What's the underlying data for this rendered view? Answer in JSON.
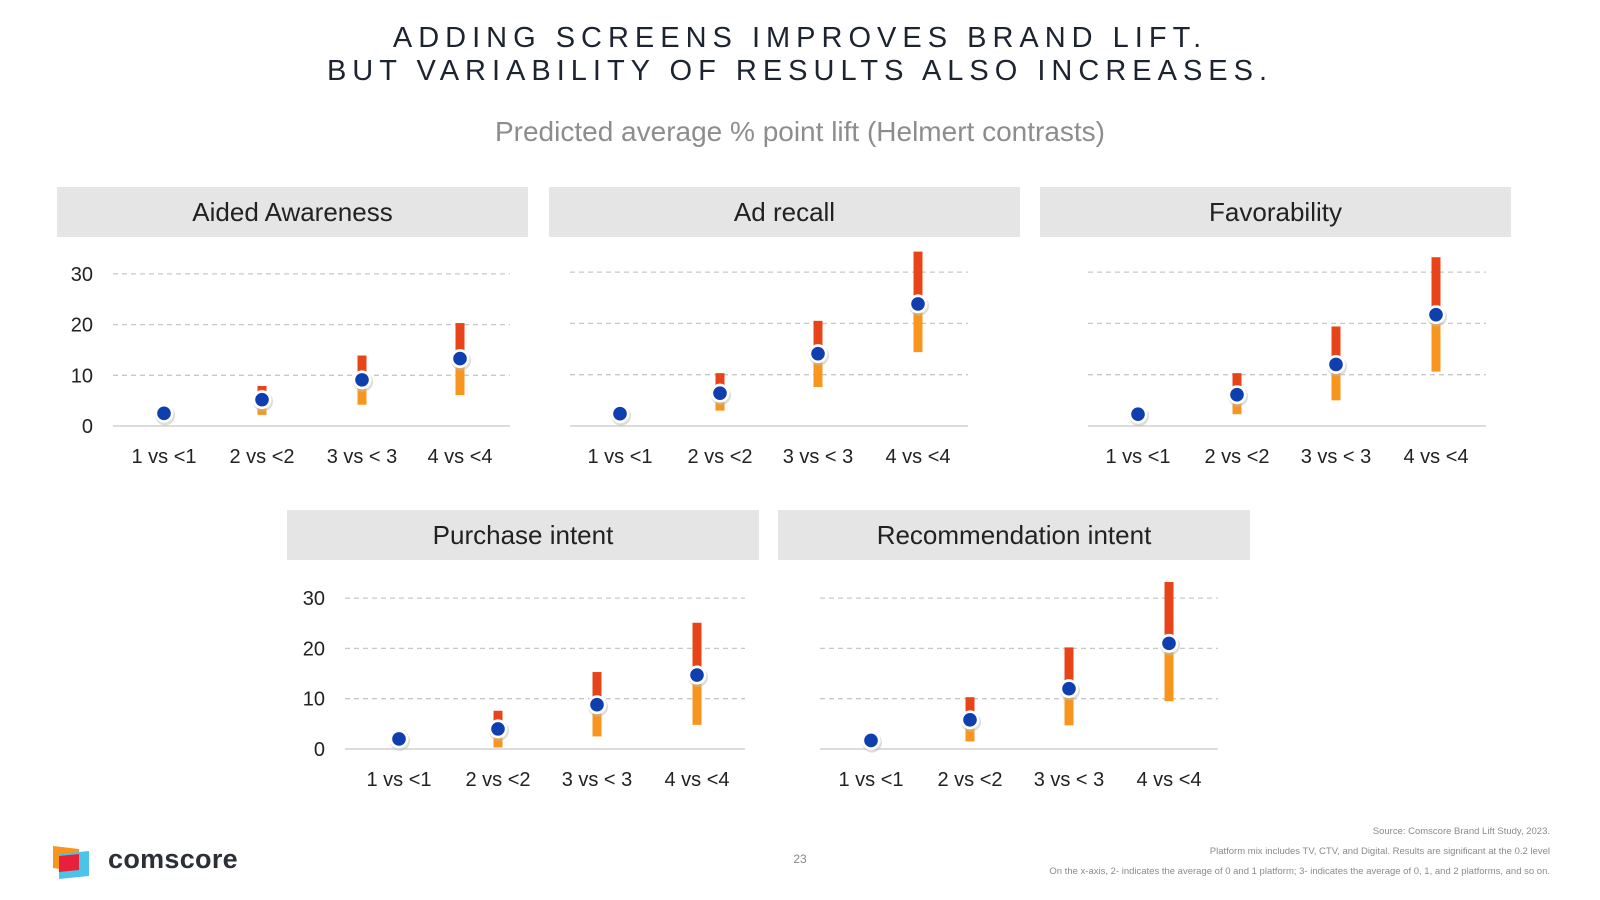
{
  "title": {
    "line1": "ADDING SCREENS IMPROVES BRAND LIFT.",
    "line2": "BUT VARIABILITY OF RESULTS ALSO INCREASES."
  },
  "subtitle": "Predicted average % point lift (Helmert contrasts)",
  "footer": {
    "brand": "comscore",
    "page_number": "23",
    "source_lines": [
      "Source: Comscore Brand Lift Study, 2023.",
      "Platform mix includes TV, CTV, and Digital. Results are significant at the 0.2 level",
      "On the x-axis, 2- indicates the average of 0 and 1 platform; 3- indicates the average of 0, 1,  and 2 platforms, and so on."
    ]
  },
  "colors": {
    "point": "#0f3fae",
    "bar_top": "#e8441a",
    "bar_bottom": "#f7951e",
    "grid": "#c8c8c8",
    "header_bg": "#e5e5e5"
  },
  "chart_data": [
    {
      "type": "scatter",
      "title": "Aided Awareness",
      "categories": [
        "1 vs <1",
        "2 vs <2",
        "3 vs < 3",
        "4 vs <4"
      ],
      "yticks": [
        0,
        10,
        20,
        30
      ],
      "ylim": [
        0,
        30
      ],
      "show_yaxis": true,
      "series": [
        {
          "values": [
            2.5,
            5.2,
            9.1,
            13.3
          ],
          "low": [
            2.5,
            2.2,
            4.2,
            6.1
          ],
          "high": [
            2.5,
            7.9,
            13.9,
            20.3
          ]
        }
      ]
    },
    {
      "type": "scatter",
      "title": "Ad recall",
      "categories": [
        "1 vs <1",
        "2 vs <2",
        "3 vs < 3",
        "4 vs <4"
      ],
      "yticks": [
        0,
        10,
        20,
        30
      ],
      "ylim": [
        0,
        30
      ],
      "show_yaxis": false,
      "series": [
        {
          "values": [
            2.4,
            6.4,
            14.1,
            23.8
          ],
          "low": [
            2.4,
            3.0,
            7.6,
            14.4
          ],
          "high": [
            2.4,
            10.3,
            20.5,
            34.0
          ]
        }
      ]
    },
    {
      "type": "scatter",
      "title": "Favorability",
      "categories": [
        "1 vs <1",
        "2 vs <2",
        "3 vs < 3",
        "4 vs <4"
      ],
      "yticks": [
        0,
        10,
        20,
        30
      ],
      "ylim": [
        0,
        30
      ],
      "show_yaxis": false,
      "series": [
        {
          "values": [
            2.3,
            6.1,
            12.0,
            21.7
          ],
          "low": [
            2.3,
            2.3,
            5.0,
            10.6
          ],
          "high": [
            2.3,
            10.3,
            19.4,
            32.9
          ]
        }
      ]
    },
    {
      "type": "scatter",
      "title": "Purchase intent",
      "categories": [
        "1 vs <1",
        "2 vs <2",
        "3 vs < 3",
        "4 vs <4"
      ],
      "yticks": [
        0,
        10,
        20,
        30
      ],
      "ylim": [
        0,
        30
      ],
      "show_yaxis": true,
      "series": [
        {
          "values": [
            2.0,
            4.0,
            8.8,
            14.7
          ],
          "low": [
            2.0,
            0.3,
            2.5,
            4.8
          ],
          "high": [
            2.0,
            7.6,
            15.3,
            25.1
          ]
        }
      ]
    },
    {
      "type": "scatter",
      "title": "Recommendation intent",
      "categories": [
        "1 vs <1",
        "2 vs <2",
        "3 vs < 3",
        "4 vs <4"
      ],
      "yticks": [
        0,
        10,
        20,
        30
      ],
      "ylim": [
        0,
        30
      ],
      "show_yaxis": false,
      "series": [
        {
          "values": [
            1.7,
            5.8,
            12.0,
            21.0
          ],
          "low": [
            1.7,
            1.5,
            4.7,
            9.5
          ],
          "high": [
            1.7,
            10.3,
            20.2,
            33.2
          ]
        }
      ]
    }
  ]
}
